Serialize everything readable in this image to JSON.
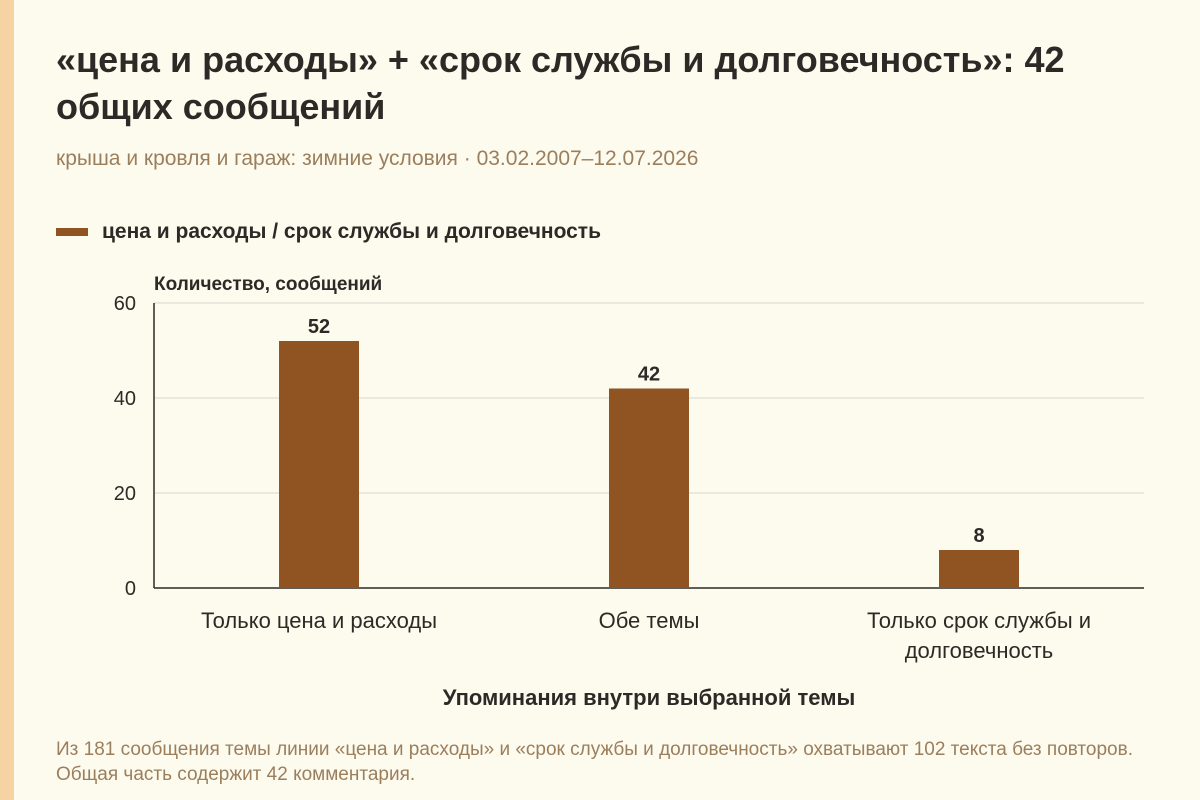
{
  "title": "«цена и расходы» + «срок службы и долговечность»: 42 общих сообщений",
  "subtitle": "крыша и кровля и гараж: зимние условия · 03.02.2007–12.07.2026",
  "footnote": "Из 181 сообщения темы линии «цена и расходы» и «срок службы и долговечность» охватывают 102 текста без повторов. Общая часть содержит 42 комментария.",
  "colors": {
    "bar": "#8f5421",
    "background": "#fdfaee",
    "accent_strip": "#f6d3a3",
    "muted_text": "#9b7f5c",
    "gridline": "#dcd7cc"
  },
  "chart_data": {
    "type": "bar",
    "categories": [
      "Только цена и расходы",
      "Обе темы",
      "Только срок службы и долговечность"
    ],
    "category_lines": [
      [
        "Только цена и расходы"
      ],
      [
        "Обе темы"
      ],
      [
        "Только срок службы и",
        "долговечность"
      ]
    ],
    "series": [
      {
        "name": "цена и расходы / срок службы и долговечность",
        "values": [
          52,
          42,
          8
        ]
      }
    ],
    "xlabel": "Упоминания внутри выбранной темы",
    "ylabel": "Количество, сообщений",
    "ylim": [
      0,
      60
    ],
    "yticks": [
      0,
      20,
      40,
      60
    ],
    "grid": true,
    "legend": "top-left",
    "data_labels": true
  }
}
